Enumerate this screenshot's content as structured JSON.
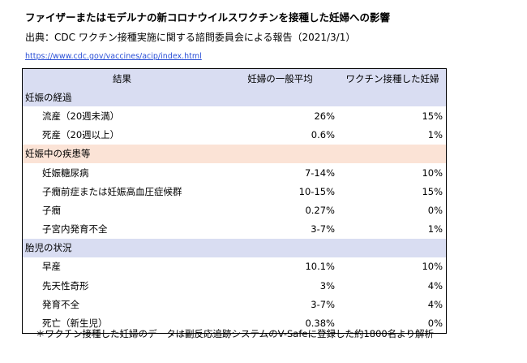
{
  "title": "ファイザーまたはモデルナの新コロナウイルスワクチンを接種した妊婦への影響",
  "source": "出典：CDC ワクチン接種実施に関する諮問委員会による報告（2021/3/1）",
  "link": "https://www.cdc.gov/vaccines/acip/index.html",
  "colors": {
    "header_bg": "#d9ddf2",
    "section_blue": "#d9ddf2",
    "section_pink": "#fbe3d6",
    "link": "#2a4fd6"
  },
  "table": {
    "headers": [
      "結果",
      "妊婦の一般平均",
      "ワクチン接種した妊婦"
    ],
    "sections": [
      {
        "title": "妊娠の経過",
        "color": "blue",
        "rows": [
          {
            "label": "流産（20週未満）",
            "general": "26%",
            "vaccinated": "15%"
          },
          {
            "label": "死産（20週以上）",
            "general": "0.6%",
            "vaccinated": "1%"
          }
        ]
      },
      {
        "title": "妊娠中の疾患等",
        "color": "pink",
        "rows": [
          {
            "label": "妊娠糖尿病",
            "general": "7-14%",
            "vaccinated": "10%"
          },
          {
            "label": "子癇前症または妊娠高血圧症候群",
            "general": "10-15%",
            "vaccinated": "15%"
          },
          {
            "label": "子癇",
            "general": "0.27%",
            "vaccinated": "0%"
          },
          {
            "label": "子宮内発育不全",
            "general": "3-7%",
            "vaccinated": "1%"
          }
        ]
      },
      {
        "title": "胎児の状況",
        "color": "blue",
        "rows": [
          {
            "label": "早産",
            "general": "10.1%",
            "vaccinated": "10%"
          },
          {
            "label": "先天性奇形",
            "general": "3%",
            "vaccinated": "4%"
          },
          {
            "label": "発育不全",
            "general": "3-7%",
            "vaccinated": "4%"
          },
          {
            "label": "死亡（新生児）",
            "general": "0.38%",
            "vaccinated": "0%"
          }
        ]
      }
    ]
  },
  "footnote": "＊ワクチン接種した妊婦のデータは副反応追跡システムのV-Safeに登録した約1800名より解析"
}
